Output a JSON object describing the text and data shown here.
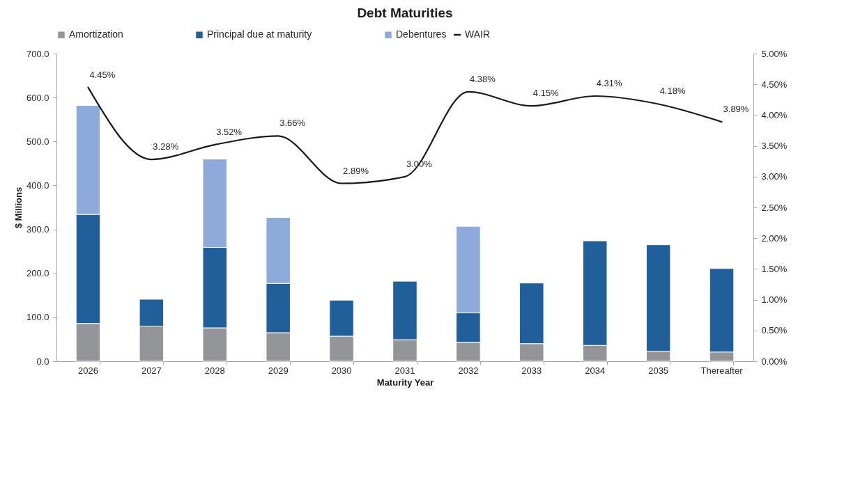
{
  "chart_data": {
    "type": "bar",
    "title": "Debt Maturities",
    "xlabel": "Maturity Year",
    "ylabel": "$ Millions",
    "stacked": true,
    "legend": "top",
    "grid": false,
    "categories": [
      "2026",
      "2027",
      "2028",
      "2029",
      "2030",
      "2031",
      "2032",
      "2033",
      "2034",
      "2035",
      "Thereafter"
    ],
    "ylim": [
      0,
      700
    ],
    "yticks": [
      {
        "value": 0,
        "label": "0.0"
      },
      {
        "value": 100,
        "label": "100.0"
      },
      {
        "value": 200,
        "label": "200.0"
      },
      {
        "value": 300,
        "label": "300.0"
      },
      {
        "value": 400,
        "label": "400.0"
      },
      {
        "value": 500,
        "label": "500.0"
      },
      {
        "value": 600,
        "label": "600.0"
      },
      {
        "value": 700,
        "label": "700.0"
      }
    ],
    "y2lim": [
      0,
      5
    ],
    "y2ticks": [
      {
        "value": 0,
        "label": "0.00%"
      },
      {
        "value": 0.5,
        "label": "0.50%"
      },
      {
        "value": 1,
        "label": "1.00%"
      },
      {
        "value": 1.5,
        "label": "1.50%"
      },
      {
        "value": 2,
        "label": "2.00%"
      },
      {
        "value": 2.5,
        "label": "2.50%"
      },
      {
        "value": 3,
        "label": "3.00%"
      },
      {
        "value": 3.5,
        "label": "3.50%"
      },
      {
        "value": 4,
        "label": "4.00%"
      },
      {
        "value": 4.5,
        "label": "4.50%"
      },
      {
        "value": 5,
        "label": "5.00%"
      }
    ],
    "series": [
      {
        "name": "Amortization",
        "color": "#939598",
        "values": [
          86,
          80,
          76,
          65,
          57,
          49,
          43,
          40,
          36,
          23,
          21
        ]
      },
      {
        "name": "Principal due at maturity",
        "color": "#215f9a",
        "values": [
          248,
          61,
          183,
          112,
          82,
          133,
          67,
          138,
          238,
          242,
          190
        ]
      },
      {
        "name": "Debentures",
        "color": "#8eaadb",
        "values": [
          248,
          null,
          201,
          150,
          null,
          null,
          197,
          null,
          null,
          null,
          null
        ]
      },
      {
        "name": "WAIR",
        "color": "#1a1a1a",
        "type": "line",
        "axis": "y2",
        "values": [
          4.45,
          3.28,
          3.52,
          3.66,
          2.89,
          3.0,
          4.38,
          4.15,
          4.31,
          4.18,
          3.89
        ],
        "value_labels": [
          "4.45%",
          "3.28%",
          "3.52%",
          "3.66%",
          "2.89%",
          "3.00%",
          "4.38%",
          "4.15%",
          "4.31%",
          "4.18%",
          "3.89%"
        ]
      }
    ]
  }
}
